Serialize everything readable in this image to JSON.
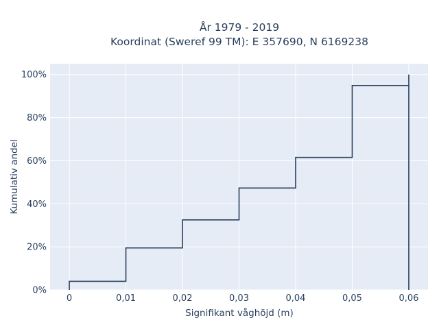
{
  "chart_data": {
    "type": "line",
    "subtype": "empirical-cdf-step",
    "title_lines": [
      "År 1979 - 2019",
      "Koordinat (Sweref 99 TM): E 357690, N 6169238"
    ],
    "xlabel": "Signifikant våghöjd (m)",
    "ylabel": "Kumulativ andel",
    "xlim": [
      -0.0034,
      0.0634
    ],
    "ylim": [
      0,
      1.05
    ],
    "x_ticks": [
      0,
      0.01,
      0.02,
      0.03,
      0.04,
      0.05,
      0.06
    ],
    "x_tick_labels": [
      "0",
      "0,01",
      "0,02",
      "0,03",
      "0,04",
      "0,05",
      "0,06"
    ],
    "y_ticks": [
      0,
      0.2,
      0.4,
      0.6,
      0.8,
      1.0
    ],
    "y_tick_labels": [
      "0%",
      "20%",
      "40%",
      "60%",
      "80%",
      "100%"
    ],
    "grid": true,
    "series": [
      {
        "x": [
          0,
          0,
          0.01,
          0.01,
          0.02,
          0.02,
          0.03,
          0.03,
          0.04,
          0.04,
          0.05,
          0.05,
          0.06,
          0.06,
          0.06
        ],
        "y": [
          0,
          0.04,
          0.04,
          0.195,
          0.195,
          0.325,
          0.325,
          0.473,
          0.473,
          0.615,
          0.615,
          0.949,
          0.949,
          1.0,
          0
        ],
        "color": "#2a3f5f"
      }
    ],
    "colors": {
      "plot_bg": "#e5ecf6",
      "grid": "#ffffff",
      "text": "#2a3f5f"
    }
  }
}
